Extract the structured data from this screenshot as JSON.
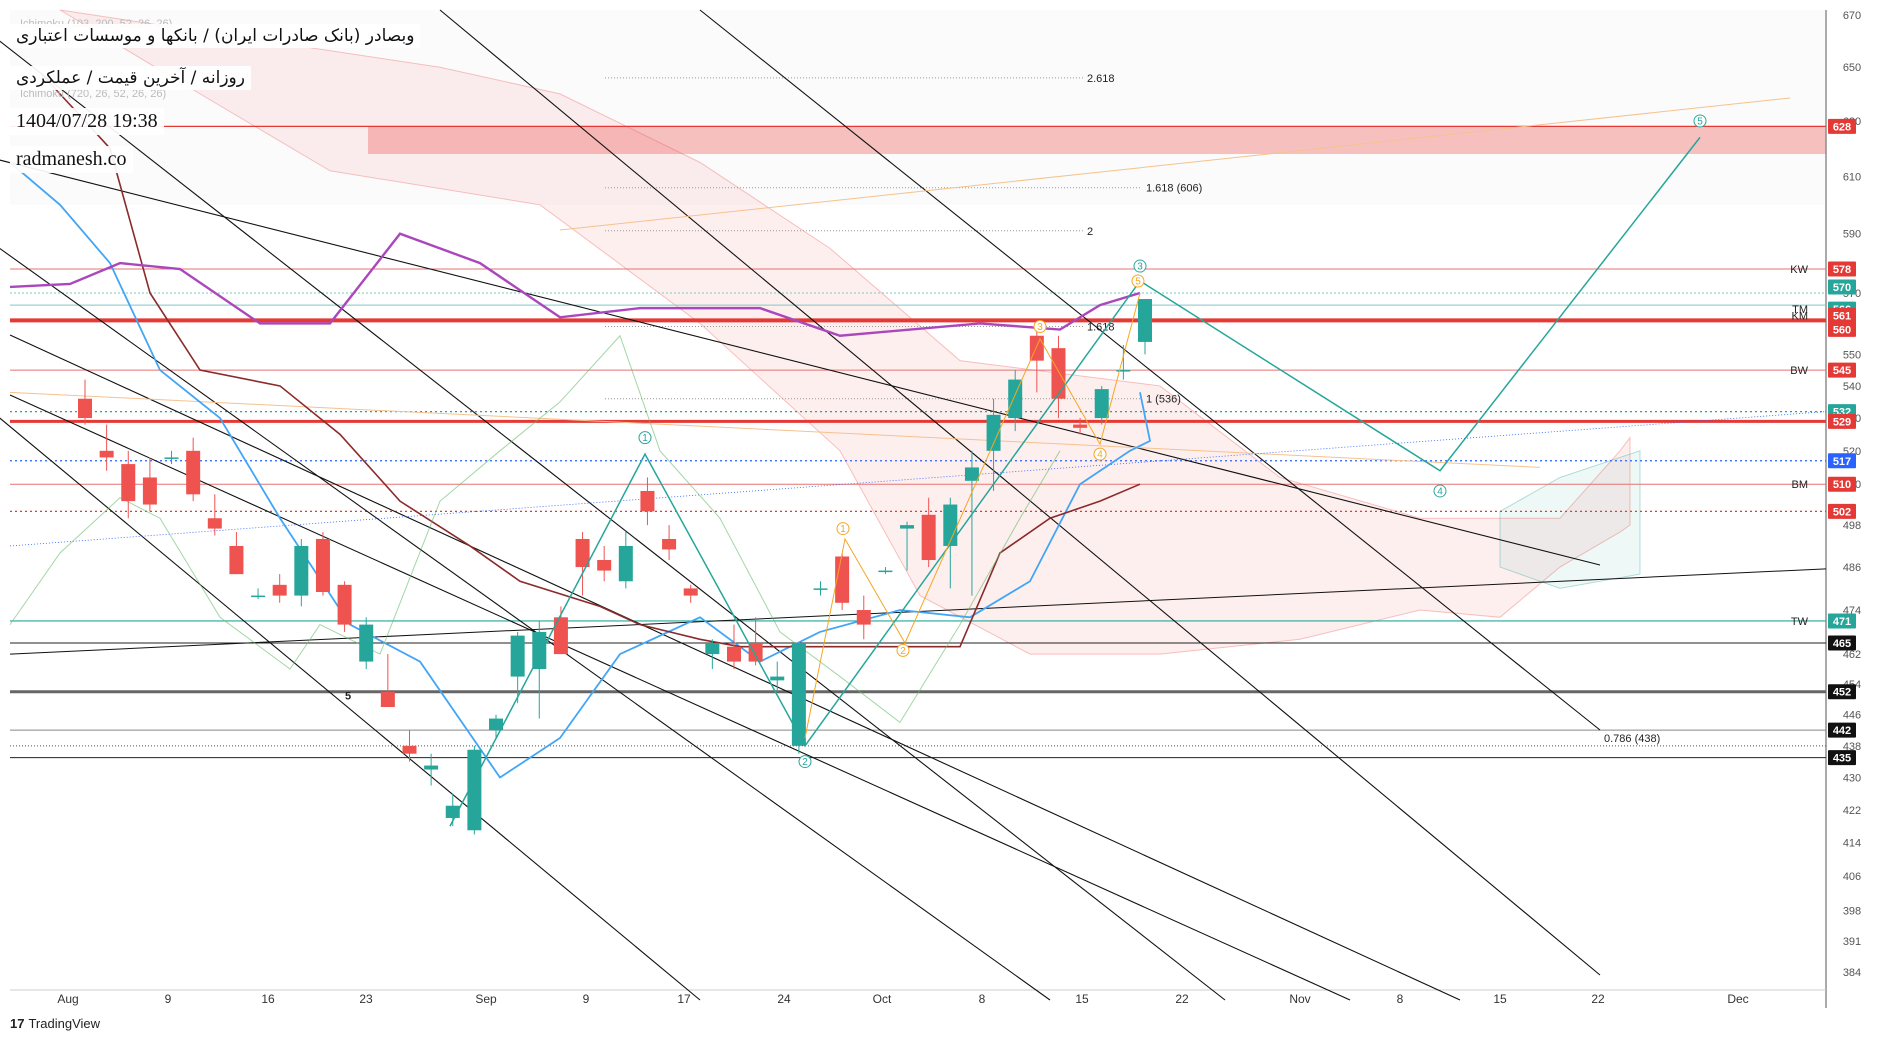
{
  "header": {
    "title": "وبصادر (بانک صادرات ایران) / بانکها و موسسات اعتباری",
    "subtitle": "روزانه / آخرین قیمت / عملکردی",
    "datetime": "1404/07/28 19:38",
    "website": "radmanesh.co",
    "faint_legend": [
      "Ichimoku (103, 200, 52, 26, 26)",
      "Ichimoku (720, 26, 52, 26, 26)"
    ]
  },
  "footer": {
    "brand": "TradingView",
    "brand_mark": "17"
  },
  "colors": {
    "bull": "#26a69a",
    "bear": "#ef5350",
    "blue_line": "#42a5f5",
    "maroon_line": "#8b2a2a",
    "purple_line": "#ab47bc",
    "wave": "#26a69a",
    "wave_alt": "#f5a623",
    "red_zone": "#f4a7ad"
  },
  "chart_data": {
    "type": "candlestick",
    "y_axis": {
      "scale": "log",
      "range": [
        380,
        672
      ],
      "ticks": [
        670,
        650,
        630,
        610,
        590,
        570,
        550,
        540,
        530,
        520,
        510,
        498,
        486,
        474,
        462,
        454,
        446,
        438,
        430,
        422,
        414,
        406,
        398,
        391,
        384
      ]
    },
    "x_axis": {
      "ticks": [
        "Aug",
        "9",
        "16",
        "23",
        "Sep",
        "9",
        "17",
        "24",
        "Oct",
        "8",
        "15",
        "22",
        "Nov",
        "8",
        "15",
        "22",
        "Dec"
      ]
    },
    "candles": [
      {
        "o": 536,
        "h": 542,
        "l": 528,
        "c": 530
      },
      {
        "o": 520,
        "h": 528,
        "l": 514,
        "c": 518
      },
      {
        "o": 516,
        "h": 520,
        "l": 500,
        "c": 505
      },
      {
        "o": 512,
        "h": 518,
        "l": 502,
        "c": 504
      },
      {
        "o": 518,
        "h": 520,
        "l": 516,
        "c": 518
      },
      {
        "o": 520,
        "h": 524,
        "l": 505,
        "c": 507
      },
      {
        "o": 500,
        "h": 507,
        "l": 495,
        "c": 497
      },
      {
        "o": 492,
        "h": 496,
        "l": 484,
        "c": 484
      },
      {
        "o": 478,
        "h": 480,
        "l": 477,
        "c": 478
      },
      {
        "o": 481,
        "h": 484,
        "l": 476,
        "c": 478
      },
      {
        "o": 478,
        "h": 494,
        "l": 475,
        "c": 492
      },
      {
        "o": 494,
        "h": 496,
        "l": 478,
        "c": 479
      },
      {
        "o": 481,
        "h": 482,
        "l": 468,
        "c": 470
      },
      {
        "o": 460,
        "h": 472,
        "l": 458,
        "c": 470
      },
      {
        "o": 452,
        "h": 462,
        "l": 449,
        "c": 448
      },
      {
        "o": 438,
        "h": 442,
        "l": 434,
        "c": 436
      },
      {
        "o": 432,
        "h": 436,
        "l": 428,
        "c": 433
      },
      {
        "o": 420,
        "h": 426,
        "l": 418,
        "c": 423
      },
      {
        "o": 417,
        "h": 438,
        "l": 416,
        "c": 437
      },
      {
        "o": 442,
        "h": 446,
        "l": 440,
        "c": 445
      },
      {
        "o": 456,
        "h": 468,
        "l": 449,
        "c": 467
      },
      {
        "o": 458,
        "h": 471,
        "l": 445,
        "c": 468
      },
      {
        "o": 472,
        "h": 475,
        "l": 462,
        "c": 462
      },
      {
        "o": 494,
        "h": 496,
        "l": 478,
        "c": 486
      },
      {
        "o": 488,
        "h": 492,
        "l": 482,
        "c": 485
      },
      {
        "o": 482,
        "h": 496,
        "l": 480,
        "c": 492
      },
      {
        "o": 508,
        "h": 512,
        "l": 498,
        "c": 502
      },
      {
        "o": 494,
        "h": 498,
        "l": 488,
        "c": 491
      },
      {
        "o": 480,
        "h": 481,
        "l": 476,
        "c": 478
      },
      {
        "o": 462,
        "h": 466,
        "l": 458,
        "c": 465
      },
      {
        "o": 464,
        "h": 470,
        "l": 458,
        "c": 460
      },
      {
        "o": 465,
        "h": 472,
        "l": 459,
        "c": 460
      },
      {
        "o": 455,
        "h": 460,
        "l": 452,
        "c": 456
      },
      {
        "o": 438,
        "h": 465,
        "l": 436,
        "c": 465
      },
      {
        "o": 480,
        "h": 482,
        "l": 478,
        "c": 480
      },
      {
        "o": 489,
        "h": 490,
        "l": 474,
        "c": 476
      },
      {
        "o": 474,
        "h": 478,
        "l": 466,
        "c": 470
      },
      {
        "o": 485,
        "h": 486,
        "l": 484,
        "c": 485
      },
      {
        "o": 497,
        "h": 499,
        "l": 485,
        "c": 498
      },
      {
        "o": 501,
        "h": 506,
        "l": 486,
        "c": 488
      },
      {
        "o": 492,
        "h": 506,
        "l": 480,
        "c": 504
      },
      {
        "o": 511,
        "h": 520,
        "l": 478,
        "c": 515
      },
      {
        "o": 520,
        "h": 536,
        "l": 508,
        "c": 531
      },
      {
        "o": 530,
        "h": 545,
        "l": 526,
        "c": 542
      },
      {
        "o": 556,
        "h": 560,
        "l": 538,
        "c": 548
      },
      {
        "o": 552,
        "h": 556,
        "l": 530,
        "c": 536
      },
      {
        "o": 528,
        "h": 530,
        "l": 525,
        "c": 527
      },
      {
        "o": 530,
        "h": 540,
        "l": 528,
        "c": 539
      },
      {
        "o": 545,
        "h": 553,
        "l": 542,
        "c": 545
      },
      {
        "o": 554,
        "h": 568,
        "l": 550,
        "c": 568
      }
    ],
    "price_tags": [
      {
        "label": "",
        "value": 628,
        "color": "#e53935"
      },
      {
        "label": "KW",
        "value": 578,
        "color": "#e53935"
      },
      {
        "label": "",
        "value": 570,
        "color": "#26a69a"
      },
      {
        "label": "TM",
        "value": 566,
        "color": "#26a69a"
      },
      {
        "label": "KM",
        "value": 561,
        "color": "#e53935"
      },
      {
        "label": "",
        "value": 560,
        "color": "#e53935"
      },
      {
        "label": "BW",
        "value": 545,
        "color": "#e53935"
      },
      {
        "label": "",
        "value": 532,
        "color": "#26a69a"
      },
      {
        "label": "",
        "value": 529,
        "color": "#e53935"
      },
      {
        "label": "",
        "value": 517,
        "color": "#2962ff"
      },
      {
        "label": "BM",
        "value": 510,
        "color": "#e53935"
      },
      {
        "label": "",
        "value": 502,
        "color": "#e53935"
      },
      {
        "label": "TW",
        "value": 471,
        "color": "#26a69a"
      },
      {
        "label": "",
        "value": 465,
        "color": "#111111"
      },
      {
        "label": "",
        "value": 452,
        "color": "#111111"
      },
      {
        "label": "",
        "value": 442,
        "color": "#111111"
      },
      {
        "label": "",
        "value": 435,
        "color": "#111111"
      }
    ],
    "fib_levels": [
      {
        "label": "2.618",
        "value": 646
      },
      {
        "label": "1.618 (606)",
        "value": 606
      },
      {
        "label": "2",
        "value": 591
      },
      {
        "label": "1.618",
        "value": 559
      },
      {
        "label": "1 (536)",
        "value": 536
      },
      {
        "label": "0.786 (438)",
        "value": 438
      }
    ],
    "wave_labels_main": [
      "1",
      "2",
      "3",
      "4",
      "5"
    ],
    "wave_labels_alt": [
      "1",
      "2",
      "3",
      "4",
      "5"
    ],
    "annotation": "5"
  }
}
